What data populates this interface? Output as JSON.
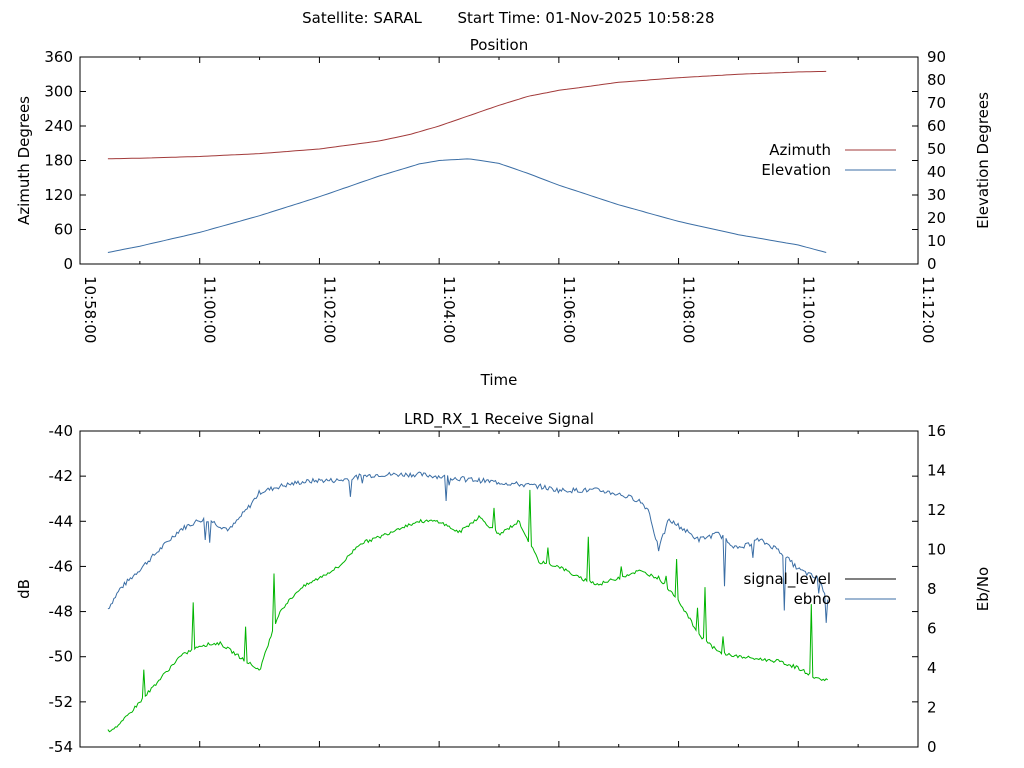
{
  "header": {
    "satellite_label": "Satellite: SARAL",
    "start_time_label": "Start Time: 01-Nov-2025 10:58:28"
  },
  "colors": {
    "azimuth": "#a23a3a",
    "elevation": "#3b6ea5",
    "signal_level": "#000000",
    "ebno": "#3b6ea5",
    "green_trace": "#00b400"
  },
  "chart_data": [
    {
      "type": "line",
      "title": "Position",
      "xlabel": "Time",
      "ylabel": "Azimuth Degrees",
      "y2label": "Elevation Degrees",
      "xlim_seconds": [
        0,
        840
      ],
      "x_ticks": [
        "10:58:00",
        "11:00:00",
        "11:02:00",
        "11:04:00",
        "11:06:00",
        "11:08:00",
        "11:10:00",
        "11:12:00"
      ],
      "x_tick_seconds": [
        0,
        120,
        240,
        360,
        480,
        600,
        720,
        840
      ],
      "ylim": [
        0,
        360
      ],
      "y_ticks": [
        "0",
        "60",
        "120",
        "180",
        "240",
        "300",
        "360"
      ],
      "y2lim": [
        0,
        90
      ],
      "y2_ticks": [
        "0",
        "10",
        "20",
        "30",
        "40",
        "50",
        "60",
        "70",
        "80",
        "90"
      ],
      "legend_position": "right",
      "series": [
        {
          "name": "Azimuth",
          "axis": "y1",
          "x": [
            28,
            60,
            120,
            180,
            240,
            300,
            330,
            360,
            390,
            420,
            450,
            480,
            540,
            600,
            660,
            720,
            748
          ],
          "values": [
            183,
            184,
            187,
            192,
            200,
            214,
            225,
            240,
            258,
            276,
            292,
            302,
            316,
            324,
            330,
            334,
            335
          ]
        },
        {
          "name": "Elevation",
          "axis": "y1",
          "x": [
            28,
            60,
            120,
            180,
            240,
            300,
            340,
            360,
            390,
            420,
            450,
            480,
            540,
            600,
            660,
            720,
            748
          ],
          "values": [
            20,
            31,
            55,
            84,
            117,
            153,
            174,
            180,
            183,
            175,
            157,
            137,
            103,
            74,
            51,
            33,
            20
          ]
        }
      ]
    },
    {
      "type": "line",
      "title": "LRD_RX_1 Receive Signal",
      "xlabel": "",
      "ylabel": "dB",
      "y2label": "Eb/No",
      "ylim": [
        -54,
        -40
      ],
      "y_ticks": [
        "-40",
        "-42",
        "-44",
        "-46",
        "-48",
        "-50",
        "-52",
        "-54"
      ],
      "y2lim": [
        0,
        16
      ],
      "y2_ticks": [
        "0",
        "2",
        "4",
        "6",
        "8",
        "10",
        "12",
        "14",
        "16"
      ],
      "legend_position": "right",
      "series": [
        {
          "name": "signal_level",
          "axis": "y1",
          "x": [],
          "values": []
        },
        {
          "name": "ebno",
          "axis": "y2",
          "x": [
            28,
            40,
            60,
            80,
            100,
            120,
            130,
            140,
            150,
            170,
            180,
            200,
            220,
            240,
            260,
            280,
            300,
            320,
            340,
            360,
            380,
            400,
            420,
            440,
            460,
            480,
            500,
            520,
            540,
            560,
            570,
            580,
            590,
            600,
            620,
            640,
            660,
            680,
            700,
            720,
            740,
            750
          ],
          "values": [
            7.0,
            8.0,
            9.0,
            10.0,
            11.0,
            11.5,
            11.5,
            11.2,
            11.0,
            12.2,
            12.9,
            13.2,
            13.4,
            13.5,
            13.5,
            13.7,
            13.8,
            13.8,
            13.8,
            13.7,
            13.6,
            13.5,
            13.4,
            13.3,
            13.2,
            13.0,
            13.0,
            13.0,
            12.8,
            12.5,
            12.0,
            10.0,
            11.5,
            11.2,
            10.5,
            10.8,
            10.0,
            10.5,
            10.0,
            9.0,
            8.5,
            7.5
          ]
        },
        {
          "name": "",
          "axis": "y1",
          "x": [
            28,
            40,
            60,
            80,
            100,
            120,
            140,
            160,
            180,
            200,
            220,
            240,
            260,
            280,
            300,
            320,
            340,
            360,
            380,
            400,
            420,
            440,
            460,
            480,
            500,
            520,
            540,
            560,
            580,
            600,
            620,
            640,
            660,
            680,
            700,
            720,
            740,
            750
          ],
          "values": [
            -53.3,
            -53.0,
            -52.0,
            -51.0,
            -50.0,
            -49.5,
            -49.4,
            -50.0,
            -50.6,
            -48.0,
            -47.0,
            -46.5,
            -46.0,
            -45.0,
            -44.7,
            -44.3,
            -44.0,
            -44.0,
            -44.5,
            -43.8,
            -44.6,
            -44.0,
            -45.8,
            -46.0,
            -46.5,
            -46.8,
            -46.5,
            -46.2,
            -46.5,
            -47.5,
            -49.0,
            -49.8,
            -50.0,
            -50.1,
            -50.2,
            -50.5,
            -51.0,
            -51.0
          ]
        }
      ]
    }
  ]
}
